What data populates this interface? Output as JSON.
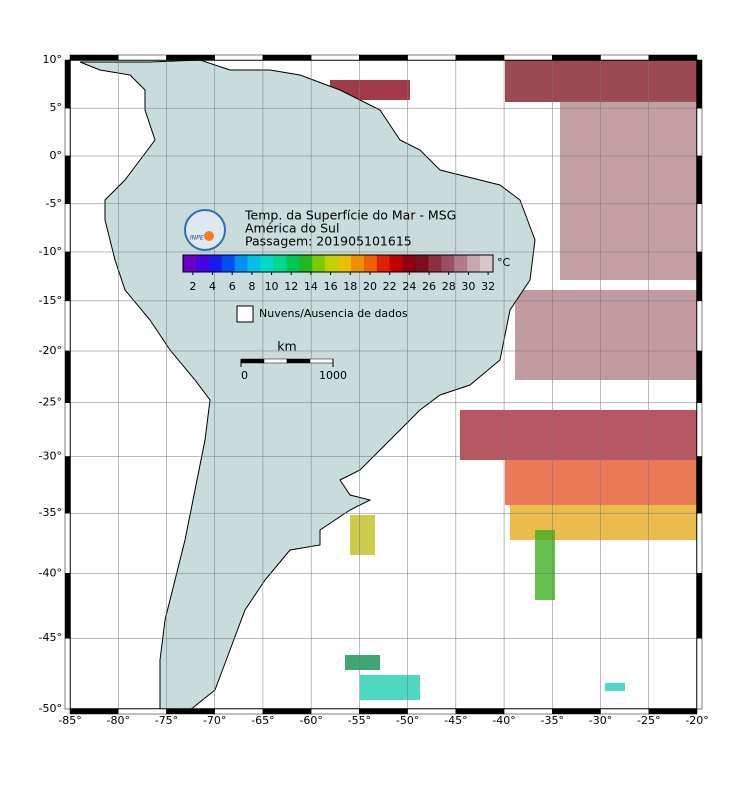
{
  "map": {
    "title": "Temp. da Superfície do Mar - MSG",
    "region": "América do Sul",
    "pass": "Passagem: 201905101615",
    "logo": "INPE",
    "lon_range": [
      -85,
      -20
    ],
    "lat_range": [
      -50,
      10
    ],
    "lon_ticks": [
      {
        "value": -85,
        "label": "-85°"
      },
      {
        "value": -80,
        "label": "-80°"
      },
      {
        "value": -75,
        "label": "-75°"
      },
      {
        "value": -70,
        "label": "-70°"
      },
      {
        "value": -65,
        "label": "-65°"
      },
      {
        "value": -60,
        "label": "-60°"
      },
      {
        "value": -55,
        "label": "-55°"
      },
      {
        "value": -50,
        "label": "-50°"
      },
      {
        "value": -45,
        "label": "-45°"
      },
      {
        "value": -40,
        "label": "-40°"
      },
      {
        "value": -35,
        "label": "-35°"
      },
      {
        "value": -30,
        "label": "-30°"
      },
      {
        "value": -25,
        "label": "-25°"
      },
      {
        "value": -20,
        "label": "-20°"
      }
    ],
    "lat_ticks": [
      {
        "value": 10,
        "label": "10°"
      },
      {
        "value": 5,
        "label": "5°"
      },
      {
        "value": 0,
        "label": "0°"
      },
      {
        "value": -5,
        "label": "-5°"
      },
      {
        "value": -10,
        "label": "-10°"
      },
      {
        "value": -15,
        "label": "-15°"
      },
      {
        "value": -20,
        "label": "-20°"
      },
      {
        "value": -25,
        "label": "-25°"
      },
      {
        "value": -30,
        "label": "-30°"
      },
      {
        "value": -35,
        "label": "-35°"
      },
      {
        "value": -40,
        "label": "-40°"
      },
      {
        "value": -45,
        "label": "-45°"
      },
      {
        "value": -50,
        "label": "-50°"
      }
    ],
    "colorbar": {
      "unit": "°C",
      "range": [
        1,
        32.5
      ],
      "ticks": [
        2,
        4,
        6,
        8,
        10,
        12,
        14,
        16,
        18,
        20,
        22,
        24,
        26,
        28,
        30,
        32
      ],
      "colors": [
        "#6a00c8",
        "#4a00e0",
        "#1a1af0",
        "#0050f0",
        "#0090f0",
        "#00c0e8",
        "#00d8c8",
        "#00d890",
        "#00c850",
        "#20b820",
        "#80c800",
        "#c0d000",
        "#e8c000",
        "#f09000",
        "#f06000",
        "#e02000",
        "#c00000",
        "#900010",
        "#7a1020",
        "#8a3040",
        "#9a5060",
        "#b07a88",
        "#c8a8b0",
        "#d8c8cc"
      ]
    },
    "no_data_legend": "Nuvens/Ausencia de dados",
    "scale": {
      "unit": "km",
      "ticks": [
        0,
        1000
      ]
    }
  }
}
